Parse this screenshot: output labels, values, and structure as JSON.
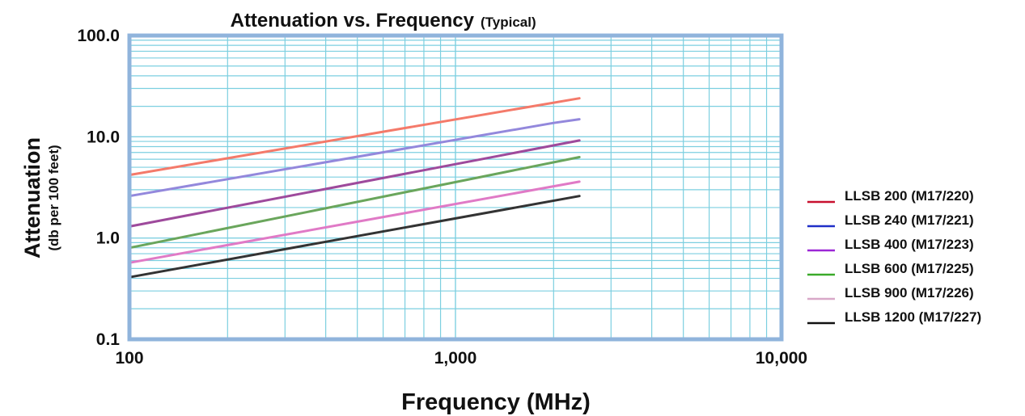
{
  "chart_data": {
    "type": "line",
    "title": "Attenuation vs. Frequency",
    "subtitle": "(Typical)",
    "xlabel": "Frequency (MHz)",
    "ylabel": "Attenuation",
    "ylabel_sub": "(db per 100 feet)",
    "x_scale": "log",
    "y_scale": "log",
    "xlim": [
      100,
      10000
    ],
    "ylim": [
      0.1,
      100
    ],
    "x_ticks": [
      {
        "value": 100,
        "label": "100"
      },
      {
        "value": 1000,
        "label": "1,000"
      },
      {
        "value": 10000,
        "label": "10,000"
      }
    ],
    "y_ticks": [
      {
        "value": 0.1,
        "label": "0.1"
      },
      {
        "value": 1,
        "label": "1.0"
      },
      {
        "value": 10,
        "label": "10.0"
      },
      {
        "value": 100,
        "label": "100.0"
      }
    ],
    "grid": true,
    "legend_position": "right",
    "colors": {
      "grid": "#7ccfe0",
      "frame": "#90b4dc"
    },
    "series": [
      {
        "name": "LLSB 200 (M17/220)",
        "legend_color": "#c8102e",
        "line_color": "#f47a6a",
        "x": [
          100,
          2400
        ],
        "y": [
          4.2,
          24
        ]
      },
      {
        "name": "LLSB 240 (M17/221)",
        "legend_color": "#1f2fc8",
        "line_color": "#9388dc",
        "x": [
          100,
          2000,
          2400
        ],
        "y": [
          2.6,
          13.7,
          14.9
        ]
      },
      {
        "name": "LLSB 400 (M17/223)",
        "legend_color": "#9b27d6",
        "line_color": "#9e4a9c",
        "x": [
          100,
          2400
        ],
        "y": [
          1.3,
          9.2
        ]
      },
      {
        "name": "LLSB 600 (M17/225)",
        "legend_color": "#3aaa2a",
        "line_color": "#6aa65c",
        "x": [
          100,
          2400
        ],
        "y": [
          0.8,
          6.3
        ]
      },
      {
        "name": "LLSB 900 (M17/226)",
        "legend_color": "#d8a8c8",
        "line_color": "#e07ac6",
        "x": [
          100,
          2400
        ],
        "y": [
          0.57,
          3.6
        ]
      },
      {
        "name": "LLSB 1200 (M17/227)",
        "legend_color": "#111111",
        "line_color": "#333333",
        "x": [
          100,
          2400
        ],
        "y": [
          0.41,
          2.6
        ]
      }
    ]
  }
}
